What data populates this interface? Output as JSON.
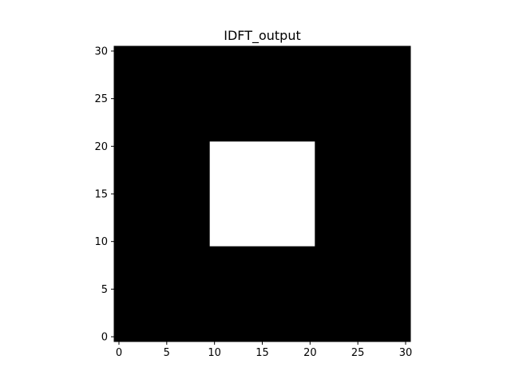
{
  "chart_data": {
    "type": "heatmap",
    "title": "IDFT_output",
    "xlabel": "",
    "ylabel": "",
    "grid": false,
    "legend": "none",
    "colormap": "gray",
    "xlim": [
      -0.5,
      30.5
    ],
    "ylim": [
      -0.5,
      30.5
    ],
    "x_ticks": [
      0,
      5,
      10,
      15,
      20,
      25,
      30
    ],
    "y_ticks": [
      0,
      5,
      10,
      15,
      20,
      25,
      30
    ],
    "grid_size": [
      31,
      31
    ],
    "background_value": 0,
    "regions": [
      {
        "x_range": [
          10,
          20
        ],
        "y_range": [
          10,
          20
        ],
        "value": 1
      }
    ],
    "colors": {
      "low": "#000000",
      "high": "#ffffff"
    }
  }
}
